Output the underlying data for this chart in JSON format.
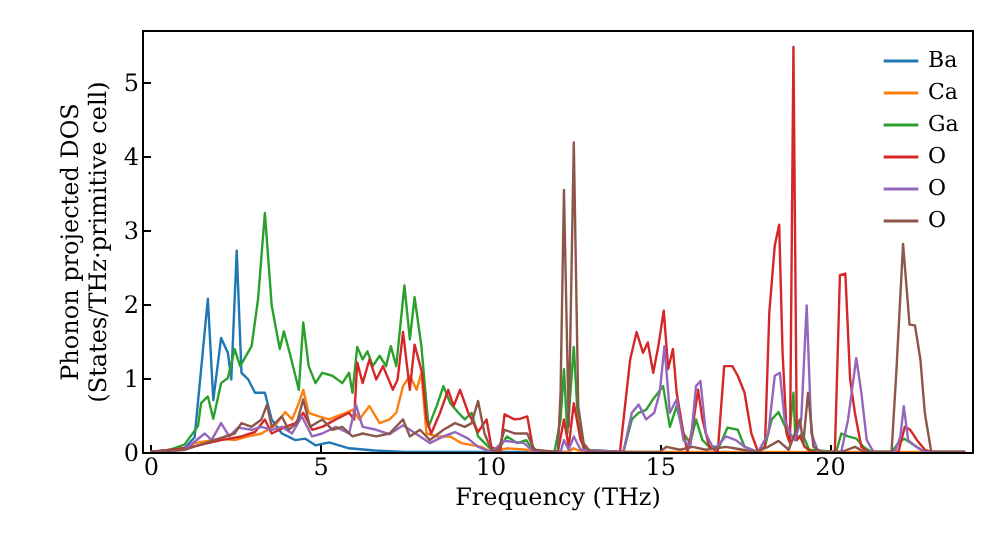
{
  "chart_data": {
    "type": "line",
    "xlabel": "Frequency (THz)",
    "ylabel": "Phonon projected DOS\n(States/THz·primitive cell)",
    "xlim": [
      -0.25,
      24.2
    ],
    "ylim": [
      0,
      5.7
    ],
    "xticks": [
      0,
      5,
      10,
      15,
      20
    ],
    "yticks": [
      0,
      1,
      2,
      3,
      4,
      5
    ],
    "grid": false,
    "legend": "top right",
    "line_style": "solid",
    "series": [
      {
        "name": "Ba",
        "color": "#1f77b4",
        "x": [
          0,
          1,
          1.3,
          1.69,
          1.85,
          2.08,
          2.28,
          2.38,
          2.54,
          2.68,
          2.88,
          3.08,
          3.37,
          3.57,
          3.87,
          4.27,
          4.56,
          4.86,
          5.26,
          5.85,
          6.6,
          7.5,
          10,
          12.3,
          12.47
        ],
        "values": [
          0,
          0.05,
          0.2,
          2.07,
          0.7,
          1.54,
          1.34,
          0.98,
          2.72,
          1.07,
          0.98,
          0.8,
          0.8,
          0.44,
          0.25,
          0.16,
          0.18,
          0.09,
          0.13,
          0.05,
          0.02,
          0,
          0,
          0,
          0.05
        ]
      },
      {
        "name": "Ca",
        "color": "#ff7f0e",
        "x": [
          0,
          1,
          1.29,
          1.69,
          2.08,
          2.48,
          2.88,
          3.27,
          3.67,
          3.97,
          4.17,
          4.37,
          4.5,
          4.66,
          4.96,
          5.26,
          5.65,
          5.95,
          6.15,
          6.45,
          6.75,
          7.04,
          7.24,
          7.44,
          7.64,
          7.84,
          7.98,
          8.13,
          8.43,
          8.83,
          9.16,
          9.75,
          10.04,
          10.5,
          11.1,
          11.3,
          12.3,
          12.47,
          12.7,
          24
        ],
        "values": [
          0,
          0.03,
          0.12,
          0.15,
          0.18,
          0.16,
          0.21,
          0.25,
          0.36,
          0.54,
          0.44,
          0.66,
          0.84,
          0.53,
          0.48,
          0.44,
          0.51,
          0.57,
          0.44,
          0.62,
          0.39,
          0.44,
          0.53,
          0.89,
          1.03,
          0.84,
          1.07,
          0.25,
          0.21,
          0.21,
          0.12,
          0.07,
          0,
          0.05,
          0.03,
          0,
          0,
          0.05,
          0,
          0
        ]
      },
      {
        "name": "Ga",
        "color": "#2ca02c",
        "x": [
          0,
          0.5,
          1.0,
          1.4,
          1.49,
          1.69,
          1.85,
          2.08,
          2.28,
          2.48,
          2.64,
          2.98,
          3.17,
          3.37,
          3.57,
          3.81,
          3.93,
          4.1,
          4.37,
          4.5,
          4.66,
          4.86,
          5.06,
          5.36,
          5.65,
          5.85,
          5.95,
          6.09,
          6.25,
          6.39,
          6.55,
          6.75,
          6.94,
          7.08,
          7.24,
          7.48,
          7.64,
          7.78,
          7.98,
          8.19,
          8.43,
          8.63,
          8.83,
          9.07,
          9.26,
          9.46,
          9.65,
          10.04,
          10.3,
          10.5,
          10.8,
          11.07,
          11.3,
          11.9,
          12.08,
          12.18,
          12.28,
          12.47,
          12.59,
          12.76,
          13.93,
          14.18,
          14.38,
          14.6,
          14.8,
          15.1,
          15.3,
          15.5,
          15.7,
          15.9,
          16.07,
          16.26,
          16.46,
          16.75,
          17.0,
          17.3,
          17.5,
          17.9,
          18.1,
          18.3,
          18.5,
          18.7,
          18.8,
          18.94,
          19.0,
          19.2,
          19.4,
          20.2,
          20.35,
          20.55,
          20.8,
          21.0,
          21.24,
          21.83,
          22.03,
          22.2,
          22.4,
          22.7,
          22.9,
          24
        ],
        "values": [
          0,
          0.02,
          0.1,
          0.35,
          0.66,
          0.75,
          0.45,
          0.93,
          1.0,
          1.39,
          1.16,
          1.43,
          2.07,
          3.23,
          1.98,
          1.39,
          1.63,
          1.34,
          0.84,
          1.75,
          1.16,
          0.93,
          1.07,
          1.03,
          0.93,
          1.07,
          0.8,
          1.42,
          1.25,
          1.36,
          1.16,
          1.3,
          1.16,
          1.43,
          1.16,
          2.25,
          1.52,
          2.09,
          1.43,
          0.34,
          0.62,
          0.89,
          0.66,
          0.53,
          0.44,
          0.53,
          0.21,
          0.03,
          0.07,
          0.21,
          0.12,
          0.16,
          0,
          0,
          0.44,
          1.12,
          0.25,
          1.42,
          0.44,
          0.03,
          0,
          0.44,
          0.53,
          0.57,
          0.71,
          0.89,
          0.34,
          0.62,
          0.25,
          0.12,
          0.44,
          0.16,
          0.07,
          0.07,
          0.33,
          0.3,
          0.07,
          0,
          0.07,
          0.44,
          0.54,
          0.34,
          0.16,
          0.8,
          0.16,
          0.25,
          0.03,
          0,
          0.25,
          0.21,
          0.18,
          0.07,
          0,
          0,
          0.12,
          0.18,
          0.12,
          0.03,
          0,
          0
        ]
      },
      {
        "name": "O",
        "color": "#d62728",
        "x": [
          0,
          1,
          1.5,
          2.08,
          2.68,
          3.08,
          3.37,
          3.57,
          3.97,
          4.27,
          4.5,
          4.76,
          5.06,
          5.46,
          5.85,
          6.0,
          6.09,
          6.25,
          6.45,
          6.65,
          6.85,
          7.14,
          7.28,
          7.44,
          7.64,
          7.78,
          8.0,
          8.13,
          8.27,
          8.53,
          8.77,
          8.93,
          9.12,
          9.36,
          9.65,
          9.9,
          10.04,
          10.3,
          10.43,
          10.72,
          10.9,
          11.1,
          11.26,
          11.4,
          12.0,
          12.18,
          12.32,
          12.47,
          12.67,
          12.86,
          13.83,
          14.13,
          14.32,
          14.51,
          14.65,
          14.81,
          14.96,
          15.12,
          15.25,
          15.39,
          15.5,
          15.7,
          15.82,
          15.97,
          16.13,
          16.26,
          16.46,
          16.71,
          16.9,
          17.14,
          17.3,
          17.5,
          17.7,
          17.9,
          18.1,
          18.23,
          18.39,
          18.52,
          18.62,
          18.74,
          18.84,
          18.94,
          19.04,
          19.13,
          19.27,
          19.47,
          20.16,
          20.31,
          20.47,
          20.61,
          20.75,
          20.94,
          21.14,
          22.03,
          22.22,
          22.38,
          22.58,
          22.81,
          23.0,
          24
        ],
        "values": [
          0,
          0.05,
          0.1,
          0.16,
          0.21,
          0.27,
          0.44,
          0.25,
          0.34,
          0.39,
          0.53,
          0.3,
          0.34,
          0.44,
          0.53,
          0.44,
          1.21,
          0.93,
          1.25,
          0.98,
          1.16,
          0.84,
          0.98,
          1.62,
          0.84,
          1.45,
          1.07,
          0.44,
          0.25,
          0.53,
          0.84,
          0.62,
          0.84,
          0.53,
          0.27,
          0.44,
          0.07,
          0,
          0.51,
          0.44,
          0.45,
          0.48,
          0.07,
          0,
          0,
          0.44,
          0.07,
          0.66,
          0.16,
          0,
          0,
          1.25,
          1.62,
          1.34,
          1.48,
          1.07,
          1.43,
          1.91,
          1.12,
          1.39,
          0.8,
          0.25,
          0,
          0.34,
          0.84,
          0.44,
          0.07,
          0,
          1.16,
          1.16,
          1.03,
          0.8,
          0.25,
          0,
          0.07,
          1.89,
          2.79,
          3.07,
          1.34,
          0.25,
          0.12,
          5.47,
          0.16,
          0.21,
          0.07,
          0,
          0,
          2.39,
          2.41,
          0.98,
          0.53,
          0.07,
          0,
          0,
          0.34,
          0.3,
          0.16,
          0.03,
          0,
          0
        ]
      },
      {
        "name": "O",
        "color": "#9467bd",
        "x": [
          0,
          1,
          1.6,
          1.8,
          2.08,
          2.32,
          2.58,
          2.98,
          3.27,
          3.57,
          3.87,
          4.17,
          4.46,
          4.76,
          5.06,
          5.46,
          5.85,
          6.05,
          6.25,
          6.65,
          7.04,
          7.44,
          7.84,
          8.23,
          8.63,
          8.97,
          9.36,
          9.65,
          10.04,
          10.43,
          11.0,
          11.3,
          12.08,
          12.18,
          12.32,
          12.47,
          12.67,
          13.93,
          14.18,
          14.38,
          14.6,
          14.84,
          15.0,
          15.14,
          15.3,
          15.5,
          15.7,
          15.9,
          16.07,
          16.2,
          16.36,
          16.6,
          16.95,
          17.24,
          17.5,
          17.9,
          18.2,
          18.39,
          18.54,
          18.68,
          18.84,
          18.98,
          19.17,
          19.33,
          19.47,
          19.67,
          20.35,
          20.55,
          20.79,
          20.94,
          21.1,
          21.3,
          21.93,
          22.09,
          22.19,
          22.32,
          22.56,
          22.81,
          24
        ],
        "values": [
          0,
          0.03,
          0.25,
          0.16,
          0.39,
          0.21,
          0.33,
          0.3,
          0.34,
          0.3,
          0.34,
          0.25,
          0.48,
          0.21,
          0.25,
          0.34,
          0.25,
          0.64,
          0.34,
          0.3,
          0.24,
          0.36,
          0.24,
          0.12,
          0.21,
          0.27,
          0.18,
          0.07,
          0,
          0.15,
          0.12,
          0,
          0,
          0.16,
          0.03,
          0.21,
          0.03,
          0,
          0.53,
          0.64,
          0.44,
          0.53,
          0.8,
          1.43,
          0.53,
          0.71,
          0.16,
          0.07,
          0.89,
          0.96,
          0.25,
          0.03,
          0.21,
          0.16,
          0.07,
          0,
          0.25,
          1.03,
          1.07,
          0.44,
          0.25,
          0.16,
          0.44,
          1.98,
          0.25,
          0,
          0,
          0.44,
          1.27,
          0.8,
          0.16,
          0,
          0,
          0.21,
          0.62,
          0.16,
          0.07,
          0,
          0
        ]
      },
      {
        "name": "O",
        "color": "#8c564b",
        "x": [
          0,
          1,
          1.88,
          2.48,
          2.68,
          2.98,
          3.27,
          3.43,
          3.57,
          3.87,
          4.07,
          4.31,
          4.5,
          4.7,
          5.06,
          5.36,
          5.65,
          5.95,
          6.25,
          6.65,
          7.04,
          7.44,
          7.64,
          7.94,
          8.23,
          8.63,
          8.97,
          9.26,
          9.46,
          9.65,
          9.84,
          10.04,
          10.23,
          10.43,
          10.72,
          11.1,
          11.3,
          12.0,
          12.08,
          12.18,
          12.32,
          12.47,
          12.6,
          12.76,
          12.96,
          15.0,
          15.2,
          15.6,
          15.97,
          16.36,
          16.95,
          17.2,
          17.8,
          18.2,
          18.5,
          18.8,
          18.98,
          19.13,
          19.23,
          19.37,
          19.53,
          19.76,
          20.35,
          20.75,
          21.04,
          21.83,
          21.97,
          22.17,
          22.36,
          22.52,
          22.68,
          22.81,
          23.0,
          24
        ],
        "values": [
          0,
          0.03,
          0.16,
          0.25,
          0.39,
          0.34,
          0.44,
          0.64,
          0.34,
          0.48,
          0.3,
          0.39,
          0.71,
          0.34,
          0.44,
          0.3,
          0.34,
          0.21,
          0.25,
          0.21,
          0.25,
          0.44,
          0.21,
          0.3,
          0.16,
          0.3,
          0.39,
          0.34,
          0.39,
          0.69,
          0.25,
          0.03,
          0,
          0.3,
          0.25,
          0.25,
          0.03,
          0,
          0.8,
          3.54,
          0.34,
          4.18,
          0.62,
          0.12,
          0,
          0,
          0.07,
          0.03,
          0.07,
          0.03,
          0.07,
          0.05,
          0,
          0.07,
          0.15,
          0.03,
          0.25,
          0.44,
          0.12,
          0.8,
          0.07,
          0,
          0,
          0.07,
          0,
          0,
          1.07,
          2.81,
          1.72,
          1.71,
          1.25,
          0.53,
          0,
          0
        ]
      }
    ]
  }
}
